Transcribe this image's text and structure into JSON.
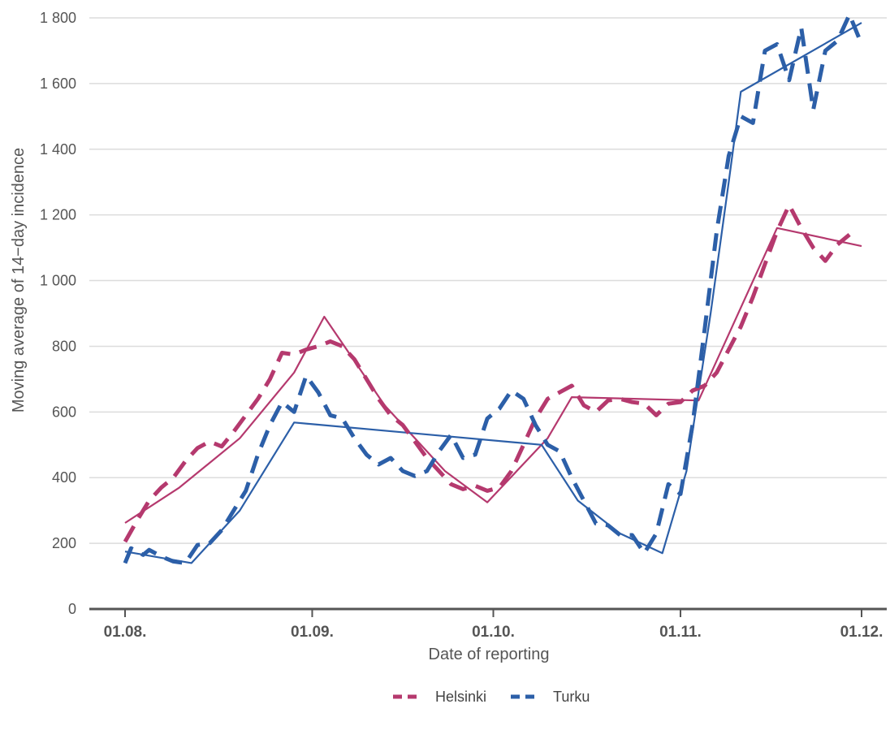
{
  "chart_data": {
    "type": "line",
    "title": "",
    "xlabel": "Date of reporting",
    "ylabel": "Moving average of 14−day incidence",
    "x_tick_labels": [
      "01.08.",
      "01.09.",
      "01.10.",
      "01.11.",
      "01.12."
    ],
    "x_tick_dates": [
      "2020-08-01",
      "2020-09-01",
      "2020-10-01",
      "2020-11-01",
      "2020-12-01"
    ],
    "y_tick_labels": [
      "0",
      "200",
      "400",
      "600",
      "800",
      "1 000",
      "1 200",
      "1 400",
      "1 600",
      "1 800"
    ],
    "ylim": [
      0,
      1800
    ],
    "xlim": [
      "2020-07-27",
      "2020-12-05"
    ],
    "grid": true,
    "legend_position": "bottom",
    "series": [
      {
        "name": "Helsinki",
        "color": "#b5396e",
        "style": "dashed",
        "points": [
          [
            "2020-08-01",
            205
          ],
          [
            "2020-08-03",
            270
          ],
          [
            "2020-08-05",
            330
          ],
          [
            "2020-08-07",
            370
          ],
          [
            "2020-08-09",
            400
          ],
          [
            "2020-08-11",
            450
          ],
          [
            "2020-08-13",
            490
          ],
          [
            "2020-08-15",
            510
          ],
          [
            "2020-08-17",
            495
          ],
          [
            "2020-08-19",
            540
          ],
          [
            "2020-08-21",
            590
          ],
          [
            "2020-08-23",
            640
          ],
          [
            "2020-08-25",
            700
          ],
          [
            "2020-08-27",
            780
          ],
          [
            "2020-08-29",
            775
          ],
          [
            "2020-08-31",
            790
          ],
          [
            "2020-09-02",
            800
          ],
          [
            "2020-09-04",
            815
          ],
          [
            "2020-09-06",
            800
          ],
          [
            "2020-09-08",
            760
          ],
          [
            "2020-09-10",
            700
          ],
          [
            "2020-09-12",
            640
          ],
          [
            "2020-09-14",
            590
          ],
          [
            "2020-09-16",
            560
          ],
          [
            "2020-09-18",
            510
          ],
          [
            "2020-09-20",
            460
          ],
          [
            "2020-09-22",
            420
          ],
          [
            "2020-09-24",
            380
          ],
          [
            "2020-09-26",
            365
          ],
          [
            "2020-09-28",
            375
          ],
          [
            "2020-09-30",
            360
          ],
          [
            "2020-10-02",
            370
          ],
          [
            "2020-10-04",
            420
          ],
          [
            "2020-10-06",
            500
          ],
          [
            "2020-10-08",
            580
          ],
          [
            "2020-10-10",
            640
          ],
          [
            "2020-10-12",
            660
          ],
          [
            "2020-10-14",
            680
          ],
          [
            "2020-10-16",
            620
          ],
          [
            "2020-10-18",
            600
          ],
          [
            "2020-10-20",
            635
          ],
          [
            "2020-10-22",
            640
          ],
          [
            "2020-10-24",
            630
          ],
          [
            "2020-10-26",
            625
          ],
          [
            "2020-10-28",
            590
          ],
          [
            "2020-10-30",
            625
          ],
          [
            "2020-11-01",
            630
          ],
          [
            "2020-11-03",
            665
          ],
          [
            "2020-11-05",
            680
          ],
          [
            "2020-11-07",
            720
          ],
          [
            "2020-11-09",
            790
          ],
          [
            "2020-11-11",
            860
          ],
          [
            "2020-11-13",
            950
          ],
          [
            "2020-11-15",
            1050
          ],
          [
            "2020-11-17",
            1150
          ],
          [
            "2020-11-19",
            1230
          ],
          [
            "2020-11-21",
            1160
          ],
          [
            "2020-11-23",
            1100
          ],
          [
            "2020-11-25",
            1060
          ],
          [
            "2020-11-27",
            1110
          ],
          [
            "2020-11-29",
            1140
          ]
        ]
      },
      {
        "name": "Turku",
        "color": "#2c5fa8",
        "style": "dashed",
        "points": [
          [
            "2020-08-01",
            140
          ],
          [
            "2020-08-02",
            185
          ],
          [
            "2020-08-04",
            165
          ],
          [
            "2020-08-05",
            180
          ],
          [
            "2020-08-07",
            160
          ],
          [
            "2020-08-09",
            145
          ],
          [
            "2020-08-11",
            140
          ],
          [
            "2020-08-13",
            195
          ],
          [
            "2020-08-15",
            200
          ],
          [
            "2020-08-17",
            240
          ],
          [
            "2020-08-19",
            300
          ],
          [
            "2020-08-21",
            360
          ],
          [
            "2020-08-23",
            470
          ],
          [
            "2020-08-25",
            560
          ],
          [
            "2020-08-27",
            630
          ],
          [
            "2020-08-29",
            600
          ],
          [
            "2020-08-31",
            710
          ],
          [
            "2020-09-02",
            660
          ],
          [
            "2020-09-04",
            590
          ],
          [
            "2020-09-06",
            580
          ],
          [
            "2020-09-08",
            520
          ],
          [
            "2020-09-10",
            470
          ],
          [
            "2020-09-12",
            440
          ],
          [
            "2020-09-14",
            460
          ],
          [
            "2020-09-16",
            420
          ],
          [
            "2020-09-18",
            405
          ],
          [
            "2020-09-20",
            420
          ],
          [
            "2020-09-22",
            480
          ],
          [
            "2020-09-24",
            530
          ],
          [
            "2020-09-26",
            460
          ],
          [
            "2020-09-28",
            470
          ],
          [
            "2020-09-30",
            580
          ],
          [
            "2020-10-02",
            610
          ],
          [
            "2020-10-04",
            665
          ],
          [
            "2020-10-06",
            640
          ],
          [
            "2020-10-08",
            560
          ],
          [
            "2020-10-10",
            500
          ],
          [
            "2020-10-12",
            480
          ],
          [
            "2020-10-14",
            400
          ],
          [
            "2020-10-16",
            330
          ],
          [
            "2020-10-18",
            260
          ],
          [
            "2020-10-20",
            255
          ],
          [
            "2020-10-22",
            225
          ],
          [
            "2020-10-24",
            225
          ],
          [
            "2020-10-26",
            170
          ],
          [
            "2020-10-28",
            230
          ],
          [
            "2020-10-30",
            380
          ],
          [
            "2020-11-01",
            350
          ],
          [
            "2020-11-03",
            560
          ],
          [
            "2020-11-05",
            850
          ],
          [
            "2020-11-07",
            1150
          ],
          [
            "2020-11-09",
            1380
          ],
          [
            "2020-11-11",
            1500
          ],
          [
            "2020-11-13",
            1480
          ],
          [
            "2020-11-15",
            1700
          ],
          [
            "2020-11-17",
            1720
          ],
          [
            "2020-11-19",
            1610
          ],
          [
            "2020-11-21",
            1770
          ],
          [
            "2020-11-23",
            1520
          ],
          [
            "2020-11-25",
            1700
          ],
          [
            "2020-11-27",
            1730
          ],
          [
            "2020-11-29",
            1810
          ],
          [
            "2020-12-01",
            1720
          ]
        ]
      }
    ],
    "trend_lines": [
      {
        "color": "#b5396e",
        "style": "solid",
        "points": [
          [
            "2020-08-01",
            262
          ],
          [
            "2020-08-10",
            370
          ],
          [
            "2020-08-20",
            520
          ],
          [
            "2020-08-29",
            720
          ],
          [
            "2020-09-03",
            890
          ],
          [
            "2020-09-13",
            620
          ],
          [
            "2020-09-23",
            420
          ],
          [
            "2020-09-30",
            325
          ],
          [
            "2020-10-10",
            520
          ],
          [
            "2020-10-14",
            645
          ],
          [
            "2020-11-04",
            635
          ],
          [
            "2020-11-17",
            1160
          ],
          [
            "2020-12-01",
            1105
          ]
        ]
      },
      {
        "color": "#2c5fa8",
        "style": "solid",
        "points": [
          [
            "2020-08-01",
            175
          ],
          [
            "2020-08-12",
            140
          ],
          [
            "2020-08-20",
            300
          ],
          [
            "2020-08-29",
            568
          ],
          [
            "2020-10-09",
            500
          ],
          [
            "2020-10-15",
            330
          ],
          [
            "2020-10-22",
            230
          ],
          [
            "2020-10-29",
            170
          ],
          [
            "2020-11-02",
            420
          ],
          [
            "2020-11-06",
            900
          ],
          [
            "2020-11-09",
            1300
          ],
          [
            "2020-11-11",
            1575
          ],
          [
            "2020-12-01",
            1785
          ]
        ]
      }
    ]
  }
}
